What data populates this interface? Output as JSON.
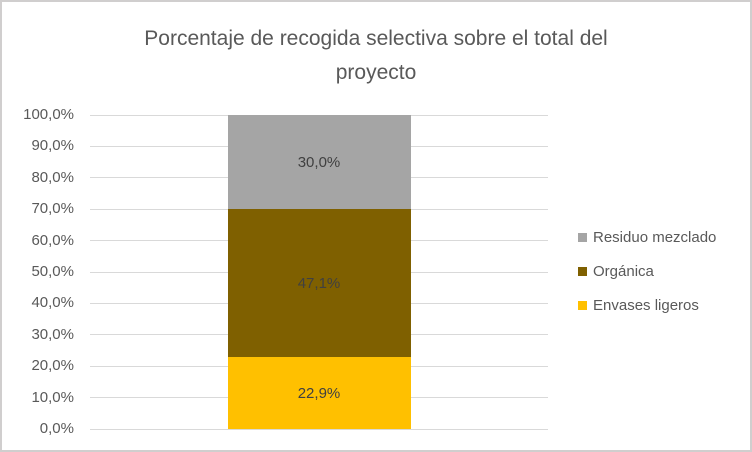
{
  "chart": {
    "title_lines": [
      "Porcentaje de recogida selectiva sobre el total del",
      "proyecto"
    ]
  },
  "chart_data": {
    "type": "bar",
    "subtype": "stacked",
    "title": "Porcentaje de recogida selectiva sobre el total del proyecto",
    "categories": [
      ""
    ],
    "series": [
      {
        "name": "Envases ligeros",
        "values": [
          22.9
        ],
        "label": "22,9%",
        "color": "#FFC000"
      },
      {
        "name": "Orgánica",
        "values": [
          47.1
        ],
        "label": "47,1%",
        "color": "#7F6000"
      },
      {
        "name": "Residuo mezclado",
        "values": [
          30.0
        ],
        "label": "30,0%",
        "color": "#A5A5A5"
      }
    ],
    "xlabel": "",
    "ylabel": "",
    "ylim": [
      0,
      100
    ],
    "ytick_step": 10,
    "ytick_labels": [
      "0,0%",
      "10,0%",
      "20,0%",
      "30,0%",
      "40,0%",
      "50,0%",
      "60,0%",
      "70,0%",
      "80,0%",
      "90,0%",
      "100,0%"
    ],
    "grid": true,
    "legend_position": "right",
    "legend": [
      {
        "label": "Residuo mezclado",
        "color": "#A5A5A5"
      },
      {
        "label": "Orgánica",
        "color": "#7F6000"
      },
      {
        "label": "Envases ligeros",
        "color": "#FFC000"
      }
    ]
  },
  "colors": {
    "background": "#FFFFFF",
    "border": "#D0CECE",
    "gridline": "#D9D9D9",
    "title_text": "#595959",
    "axis_text": "#595959",
    "data_label_text": "#404040"
  }
}
